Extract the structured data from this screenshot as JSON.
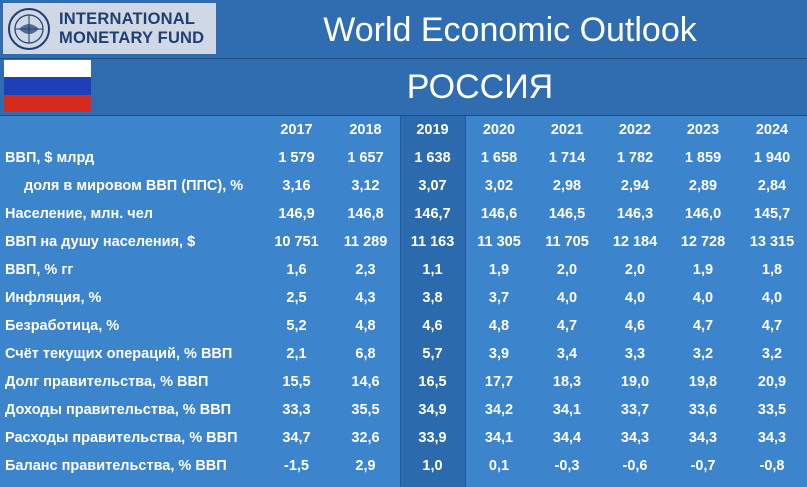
{
  "header": {
    "logo_text": "INTERNATIONAL\nMONETARY FUND",
    "seal_icon": "imf-seal-icon",
    "title": "World Economic Outlook"
  },
  "country": {
    "name": "РОССИЯ",
    "flag_colors": [
      "#ffffff",
      "#1f3fb8",
      "#d52b1e"
    ]
  },
  "colors": {
    "background": "#2d6fb5",
    "highlight_column": "#2b6aad",
    "shaded_panel": "#3c84cc"
  },
  "table": {
    "years": [
      "2017",
      "2018",
      "2019",
      "2020",
      "2021",
      "2022",
      "2023",
      "2024"
    ],
    "rows": [
      {
        "label": "ВВП, $ млрд",
        "indent": false,
        "values": [
          "1 579",
          "1 657",
          "1 638",
          "1 658",
          "1 714",
          "1 782",
          "1 859",
          "1 940"
        ]
      },
      {
        "label": "доля в мировом ВВП (ППС), %",
        "indent": true,
        "values": [
          "3,16",
          "3,12",
          "3,07",
          "3,02",
          "2,98",
          "2,94",
          "2,89",
          "2,84"
        ]
      },
      {
        "label": "Население, млн. чел",
        "indent": false,
        "values": [
          "146,9",
          "146,8",
          "146,7",
          "146,6",
          "146,5",
          "146,3",
          "146,0",
          "145,7"
        ]
      },
      {
        "label": "ВВП на душу населения, $",
        "indent": false,
        "values": [
          "10 751",
          "11 289",
          "11 163",
          "11 305",
          "11 705",
          "12 184",
          "12 728",
          "13 315"
        ]
      },
      {
        "label": "ВВП, % гг",
        "indent": false,
        "values": [
          "1,6",
          "2,3",
          "1,1",
          "1,9",
          "2,0",
          "2,0",
          "1,9",
          "1,8"
        ]
      },
      {
        "label": "Инфляция, %",
        "indent": false,
        "values": [
          "2,5",
          "4,3",
          "3,8",
          "3,7",
          "4,0",
          "4,0",
          "4,0",
          "4,0"
        ]
      },
      {
        "label": "Безработица, %",
        "indent": false,
        "values": [
          "5,2",
          "4,8",
          "4,6",
          "4,8",
          "4,7",
          "4,6",
          "4,7",
          "4,7"
        ]
      },
      {
        "label": "Счёт текущих операций, % ВВП",
        "indent": false,
        "values": [
          "2,1",
          "6,8",
          "5,7",
          "3,9",
          "3,4",
          "3,3",
          "3,2",
          "3,2"
        ]
      },
      {
        "label": "Долг правительства, % ВВП",
        "indent": false,
        "values": [
          "15,5",
          "14,6",
          "16,5",
          "17,7",
          "18,3",
          "19,0",
          "19,8",
          "20,9"
        ]
      },
      {
        "label": "Доходы правительства, % ВВП",
        "indent": false,
        "values": [
          "33,3",
          "35,5",
          "34,9",
          "34,2",
          "34,1",
          "33,7",
          "33,6",
          "33,5"
        ]
      },
      {
        "label": "Расходы правительства, % ВВП",
        "indent": false,
        "values": [
          "34,7",
          "32,6",
          "33,9",
          "34,1",
          "34,4",
          "34,3",
          "34,3",
          "34,3"
        ]
      },
      {
        "label": "Баланс правительства, % ВВП",
        "indent": false,
        "values": [
          "-1,5",
          "2,9",
          "1,0",
          "0,1",
          "-0,3",
          "-0,6",
          "-0,7",
          "-0,8"
        ]
      }
    ]
  }
}
